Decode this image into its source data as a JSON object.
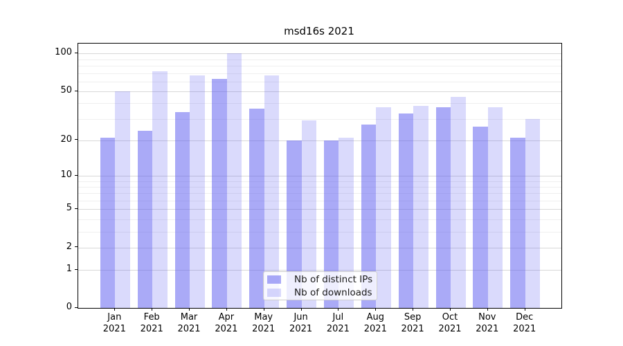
{
  "chart_data": {
    "type": "bar",
    "title": "msd16s 2021",
    "categories": [
      "Jan",
      "Feb",
      "Mar",
      "Apr",
      "May",
      "Jun",
      "Jul",
      "Aug",
      "Sep",
      "Oct",
      "Nov",
      "Dec"
    ],
    "year_label": "2021",
    "series": [
      {
        "name": "Nb of distinct IPs",
        "color": "#5555f0",
        "alpha": 0.5,
        "values": [
          21,
          24,
          34,
          63,
          36,
          20,
          20,
          27,
          33,
          37,
          26,
          21
        ]
      },
      {
        "name": "Nb of downloads",
        "color": "#5555f0",
        "alpha": 0.22,
        "values": [
          50,
          72,
          67,
          100,
          67,
          29,
          21,
          37,
          38,
          45,
          37,
          30
        ]
      }
    ],
    "y_axis": {
      "scale": "log1p",
      "ymin": 0,
      "ymax": 120,
      "major_ticks": [
        0,
        1,
        2,
        5,
        10,
        20,
        50,
        100
      ],
      "minor_ticks": [
        3,
        4,
        6,
        7,
        8,
        9,
        30,
        40,
        60,
        70,
        80,
        90
      ]
    },
    "grid": {
      "major_color": "#d8d8d8",
      "minor_color": "#efefef"
    },
    "axis_color": "#000000",
    "legend": {
      "location": "lower center"
    }
  }
}
